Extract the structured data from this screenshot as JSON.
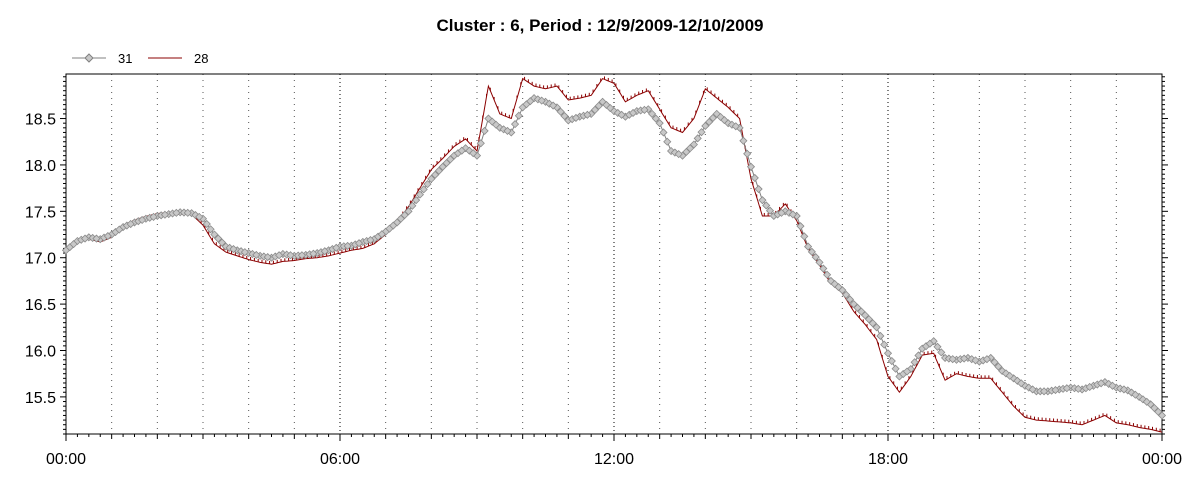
{
  "chart_data": {
    "type": "line",
    "title": "Cluster : 6, Period : 12/9/2009-12/10/2009",
    "xlabel": "",
    "ylabel": "",
    "xlim": [
      0,
      24
    ],
    "ylim": [
      15.1,
      18.98
    ],
    "grid": {
      "vertical_major": true,
      "vertical_minor": true,
      "horizontal": false
    },
    "legend_placement": "top-left",
    "x_tick_labels": [
      {
        "value": 0,
        "label": "00:00"
      },
      {
        "value": 6,
        "label": "06:00"
      },
      {
        "value": 12,
        "label": "12:00"
      },
      {
        "value": 18,
        "label": "18:00"
      },
      {
        "value": 24,
        "label": "00:00"
      }
    ],
    "y_tick_labels": [
      {
        "value": 15.5,
        "label": "15.5"
      },
      {
        "value": 16.0,
        "label": "16.0"
      },
      {
        "value": 16.5,
        "label": "16.5"
      },
      {
        "value": 17.0,
        "label": "17.0"
      },
      {
        "value": 17.5,
        "label": "17.5"
      },
      {
        "value": 18.0,
        "label": "18.0"
      },
      {
        "value": 18.5,
        "label": "18.5"
      }
    ],
    "series": [
      {
        "name": "31",
        "color": "#808080",
        "marker": "diamond",
        "points": [
          [
            0.0,
            17.08
          ],
          [
            0.25,
            17.18
          ],
          [
            0.5,
            17.22
          ],
          [
            0.75,
            17.2
          ],
          [
            1.0,
            17.25
          ],
          [
            1.25,
            17.33
          ],
          [
            1.5,
            17.38
          ],
          [
            1.75,
            17.42
          ],
          [
            2.0,
            17.45
          ],
          [
            2.25,
            17.47
          ],
          [
            2.5,
            17.49
          ],
          [
            2.75,
            17.48
          ],
          [
            3.0,
            17.42
          ],
          [
            3.25,
            17.25
          ],
          [
            3.5,
            17.12
          ],
          [
            3.75,
            17.08
          ],
          [
            4.0,
            17.05
          ],
          [
            4.25,
            17.02
          ],
          [
            4.5,
            17.0
          ],
          [
            4.75,
            17.04
          ],
          [
            5.0,
            17.02
          ],
          [
            5.25,
            17.03
          ],
          [
            5.5,
            17.05
          ],
          [
            5.75,
            17.08
          ],
          [
            6.0,
            17.12
          ],
          [
            6.25,
            17.13
          ],
          [
            6.5,
            17.17
          ],
          [
            6.75,
            17.2
          ],
          [
            7.0,
            17.28
          ],
          [
            7.25,
            17.38
          ],
          [
            7.5,
            17.5
          ],
          [
            7.75,
            17.68
          ],
          [
            8.0,
            17.85
          ],
          [
            8.25,
            17.98
          ],
          [
            8.5,
            18.1
          ],
          [
            8.75,
            18.18
          ],
          [
            9.0,
            18.1
          ],
          [
            9.25,
            18.5
          ],
          [
            9.5,
            18.4
          ],
          [
            9.75,
            18.35
          ],
          [
            10.0,
            18.62
          ],
          [
            10.25,
            18.72
          ],
          [
            10.5,
            18.68
          ],
          [
            10.75,
            18.62
          ],
          [
            11.0,
            18.48
          ],
          [
            11.25,
            18.52
          ],
          [
            11.5,
            18.55
          ],
          [
            11.75,
            18.68
          ],
          [
            12.0,
            18.58
          ],
          [
            12.25,
            18.52
          ],
          [
            12.5,
            18.58
          ],
          [
            12.75,
            18.6
          ],
          [
            13.0,
            18.45
          ],
          [
            13.25,
            18.15
          ],
          [
            13.5,
            18.1
          ],
          [
            13.75,
            18.22
          ],
          [
            14.0,
            18.42
          ],
          [
            14.25,
            18.55
          ],
          [
            14.5,
            18.45
          ],
          [
            14.75,
            18.4
          ],
          [
            15.0,
            17.98
          ],
          [
            15.25,
            17.62
          ],
          [
            15.5,
            17.45
          ],
          [
            15.75,
            17.5
          ],
          [
            16.0,
            17.45
          ],
          [
            16.25,
            17.12
          ],
          [
            16.5,
            16.95
          ],
          [
            16.75,
            16.75
          ],
          [
            17.0,
            16.65
          ],
          [
            17.25,
            16.5
          ],
          [
            17.5,
            16.38
          ],
          [
            17.75,
            16.25
          ],
          [
            18.0,
            15.97
          ],
          [
            18.25,
            15.72
          ],
          [
            18.5,
            15.8
          ],
          [
            18.75,
            16.02
          ],
          [
            19.0,
            16.1
          ],
          [
            19.25,
            15.92
          ],
          [
            19.5,
            15.9
          ],
          [
            19.75,
            15.92
          ],
          [
            20.0,
            15.88
          ],
          [
            20.25,
            15.92
          ],
          [
            20.5,
            15.78
          ],
          [
            20.75,
            15.7
          ],
          [
            21.0,
            15.62
          ],
          [
            21.25,
            15.56
          ],
          [
            21.5,
            15.56
          ],
          [
            21.75,
            15.58
          ],
          [
            22.0,
            15.6
          ],
          [
            22.25,
            15.58
          ],
          [
            22.5,
            15.62
          ],
          [
            22.75,
            15.66
          ],
          [
            23.0,
            15.6
          ],
          [
            23.25,
            15.57
          ],
          [
            23.5,
            15.5
          ],
          [
            23.75,
            15.42
          ],
          [
            24.0,
            15.3
          ]
        ]
      },
      {
        "name": "28",
        "color": "#8b0000",
        "marker": "tick",
        "points": [
          [
            0.0,
            17.06
          ],
          [
            0.25,
            17.17
          ],
          [
            0.5,
            17.2
          ],
          [
            0.75,
            17.17
          ],
          [
            1.0,
            17.22
          ],
          [
            1.25,
            17.32
          ],
          [
            1.5,
            17.38
          ],
          [
            1.75,
            17.42
          ],
          [
            2.0,
            17.45
          ],
          [
            2.25,
            17.46
          ],
          [
            2.5,
            17.47
          ],
          [
            2.75,
            17.47
          ],
          [
            3.0,
            17.35
          ],
          [
            3.25,
            17.15
          ],
          [
            3.5,
            17.06
          ],
          [
            3.75,
            17.02
          ],
          [
            4.0,
            16.98
          ],
          [
            4.25,
            16.95
          ],
          [
            4.5,
            16.93
          ],
          [
            4.75,
            16.96
          ],
          [
            5.0,
            16.97
          ],
          [
            5.25,
            16.99
          ],
          [
            5.5,
            17.0
          ],
          [
            5.75,
            17.02
          ],
          [
            6.0,
            17.05
          ],
          [
            6.25,
            17.08
          ],
          [
            6.5,
            17.1
          ],
          [
            6.75,
            17.15
          ],
          [
            7.0,
            17.25
          ],
          [
            7.25,
            17.38
          ],
          [
            7.5,
            17.55
          ],
          [
            7.75,
            17.75
          ],
          [
            8.0,
            17.95
          ],
          [
            8.25,
            18.07
          ],
          [
            8.5,
            18.2
          ],
          [
            8.75,
            18.28
          ],
          [
            9.0,
            18.15
          ],
          [
            9.25,
            18.85
          ],
          [
            9.5,
            18.55
          ],
          [
            9.75,
            18.5
          ],
          [
            10.0,
            18.93
          ],
          [
            10.25,
            18.85
          ],
          [
            10.5,
            18.82
          ],
          [
            10.75,
            18.85
          ],
          [
            11.0,
            18.7
          ],
          [
            11.25,
            18.72
          ],
          [
            11.5,
            18.75
          ],
          [
            11.75,
            18.93
          ],
          [
            12.0,
            18.88
          ],
          [
            12.25,
            18.68
          ],
          [
            12.5,
            18.75
          ],
          [
            12.75,
            18.8
          ],
          [
            13.0,
            18.6
          ],
          [
            13.25,
            18.4
          ],
          [
            13.5,
            18.35
          ],
          [
            13.75,
            18.5
          ],
          [
            14.0,
            18.82
          ],
          [
            14.25,
            18.72
          ],
          [
            14.5,
            18.62
          ],
          [
            14.75,
            18.5
          ],
          [
            15.0,
            17.85
          ],
          [
            15.25,
            17.45
          ],
          [
            15.5,
            17.45
          ],
          [
            15.75,
            17.58
          ],
          [
            16.0,
            17.4
          ],
          [
            16.25,
            17.1
          ],
          [
            16.5,
            16.92
          ],
          [
            16.75,
            16.72
          ],
          [
            17.0,
            16.62
          ],
          [
            17.25,
            16.42
          ],
          [
            17.5,
            16.28
          ],
          [
            17.75,
            16.12
          ],
          [
            18.0,
            15.72
          ],
          [
            18.25,
            15.55
          ],
          [
            18.5,
            15.72
          ],
          [
            18.75,
            15.95
          ],
          [
            19.0,
            15.97
          ],
          [
            19.25,
            15.68
          ],
          [
            19.5,
            15.75
          ],
          [
            19.75,
            15.72
          ],
          [
            20.0,
            15.7
          ],
          [
            20.25,
            15.7
          ],
          [
            20.5,
            15.55
          ],
          [
            20.75,
            15.4
          ],
          [
            21.0,
            15.28
          ],
          [
            21.25,
            15.25
          ],
          [
            21.5,
            15.24
          ],
          [
            21.75,
            15.23
          ],
          [
            22.0,
            15.22
          ],
          [
            22.25,
            15.2
          ],
          [
            22.5,
            15.25
          ],
          [
            22.75,
            15.3
          ],
          [
            23.0,
            15.22
          ],
          [
            23.25,
            15.2
          ],
          [
            23.5,
            15.17
          ],
          [
            23.75,
            15.15
          ],
          [
            24.0,
            15.12
          ]
        ]
      }
    ]
  }
}
